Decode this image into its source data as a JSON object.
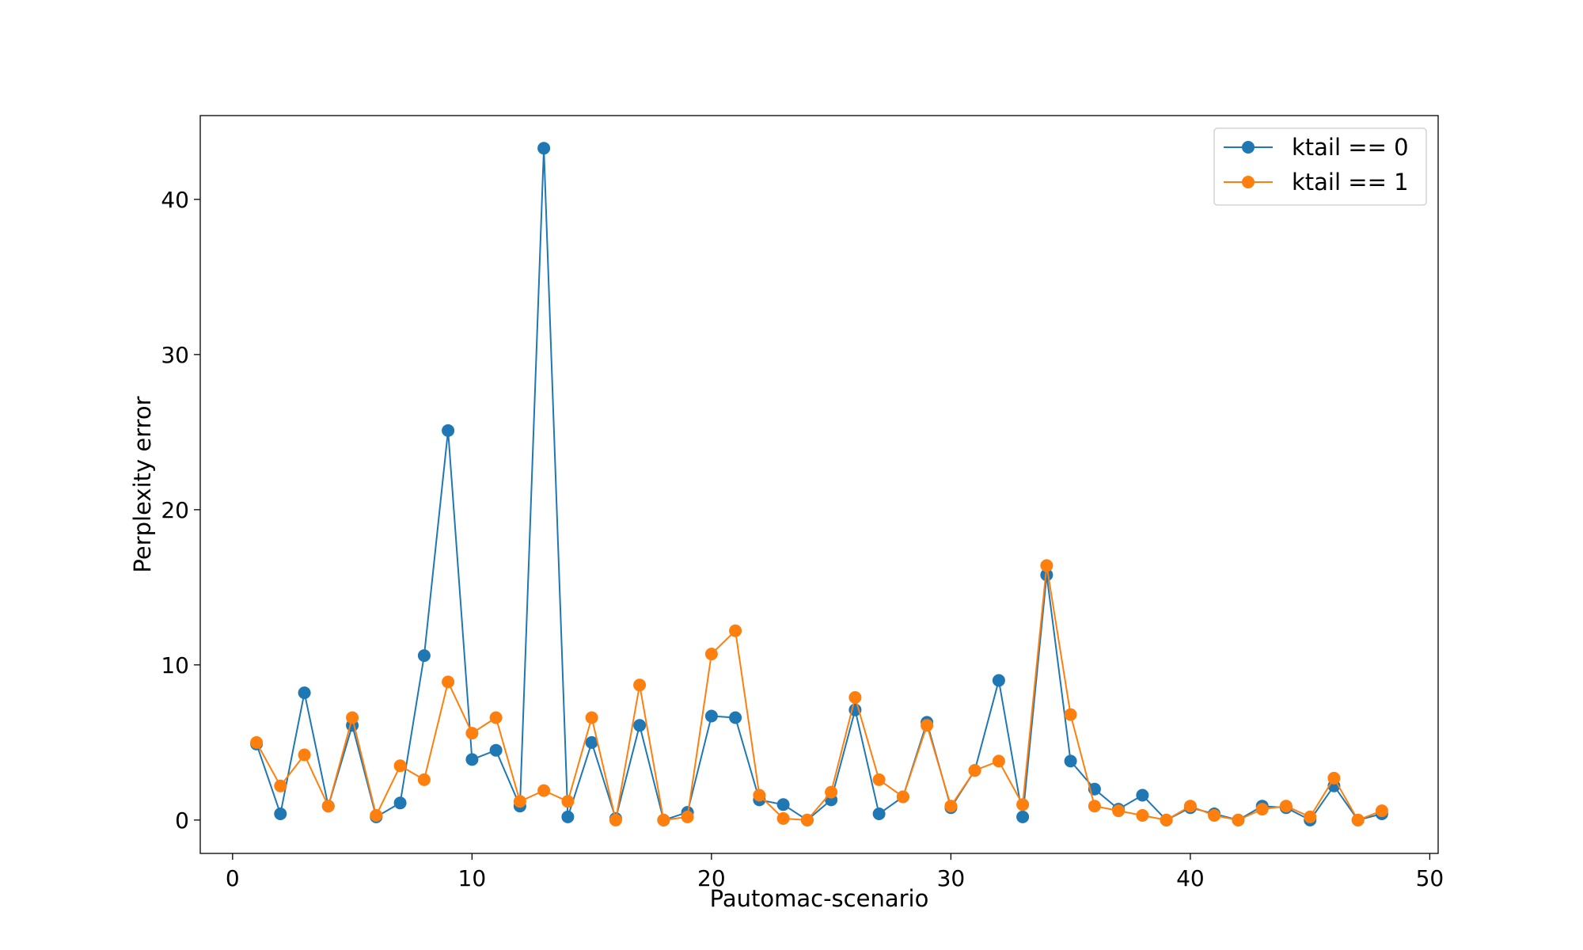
{
  "chart_data": {
    "type": "line",
    "title": "",
    "xlabel": "Pautomac-scenario",
    "ylabel": "Perplexity error",
    "xlim": [
      -1.35,
      50.35
    ],
    "ylim": [
      -2.15,
      45.4
    ],
    "xticks": [
      0,
      10,
      20,
      30,
      40,
      50
    ],
    "yticks": [
      0,
      10,
      20,
      30,
      40
    ],
    "grid": false,
    "legend_position": "top-right",
    "x": [
      1,
      2,
      3,
      4,
      5,
      6,
      7,
      8,
      9,
      10,
      11,
      12,
      13,
      14,
      15,
      16,
      17,
      18,
      19,
      20,
      21,
      22,
      23,
      24,
      25,
      26,
      27,
      28,
      29,
      30,
      31,
      32,
      33,
      34,
      35,
      36,
      37,
      38,
      39,
      40,
      41,
      42,
      43,
      44,
      45,
      46,
      47,
      48
    ],
    "series": [
      {
        "name": "ktail == 0",
        "color": "#1f77b4",
        "values": [
          4.9,
          0.4,
          8.2,
          0.9,
          6.1,
          0.2,
          1.1,
          10.6,
          25.1,
          3.9,
          4.5,
          0.9,
          43.3,
          0.2,
          5.0,
          0.1,
          6.1,
          0.0,
          0.5,
          6.7,
          6.6,
          1.3,
          1.0,
          0.0,
          1.3,
          7.1,
          0.4,
          1.5,
          6.3,
          0.8,
          3.2,
          9.0,
          0.2,
          15.8,
          3.8,
          2.0,
          0.7,
          1.6,
          0.0,
          0.8,
          0.4,
          0.0,
          0.9,
          0.8,
          0.0,
          2.2,
          0.0,
          0.4
        ]
      },
      {
        "name": "ktail == 1",
        "color": "#ff7f0e",
        "values": [
          5.0,
          2.2,
          4.2,
          0.9,
          6.6,
          0.3,
          3.5,
          2.6,
          8.9,
          5.6,
          6.6,
          1.2,
          1.9,
          1.2,
          6.6,
          0.0,
          8.7,
          0.0,
          0.2,
          10.7,
          12.2,
          1.6,
          0.1,
          0.0,
          1.8,
          7.9,
          2.6,
          1.5,
          6.1,
          0.9,
          3.2,
          3.8,
          1.0,
          16.4,
          6.8,
          0.9,
          0.6,
          0.3,
          0.0,
          0.9,
          0.3,
          0.0,
          0.7,
          0.9,
          0.2,
          2.7,
          0.0,
          0.6
        ]
      }
    ]
  }
}
